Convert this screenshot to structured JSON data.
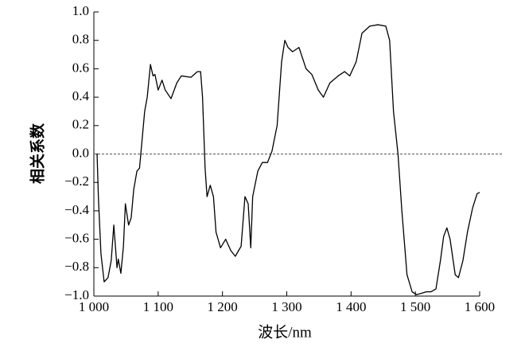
{
  "chart_data": {
    "type": "line",
    "xlabel": "波长/nm",
    "ylabel": "相关系数",
    "x": [
      1005,
      1007,
      1011,
      1016,
      1022,
      1027,
      1031,
      1033,
      1036,
      1038,
      1042,
      1046,
      1049,
      1054,
      1058,
      1062,
      1067,
      1071,
      1074,
      1079,
      1083,
      1088,
      1092,
      1095,
      1100,
      1106,
      1111,
      1120,
      1129,
      1136,
      1151,
      1161,
      1166,
      1169,
      1173,
      1176,
      1181,
      1186,
      1190,
      1197,
      1205,
      1213,
      1220,
      1225,
      1229,
      1235,
      1240,
      1244,
      1247,
      1255,
      1262,
      1270,
      1277,
      1285,
      1292,
      1297,
      1302,
      1309,
      1319,
      1330,
      1339,
      1349,
      1357,
      1367,
      1380,
      1390,
      1398,
      1408,
      1417,
      1429,
      1442,
      1454,
      1460,
      1466,
      1473,
      1479,
      1487,
      1495,
      1502,
      1510,
      1517,
      1524,
      1532,
      1539,
      1544,
      1549,
      1554,
      1562,
      1567,
      1574,
      1581,
      1589,
      1596,
      1600
    ],
    "series": [
      {
        "color": "#000000",
        "values": [
          0.0,
          -0.3,
          -0.7,
          -0.9,
          -0.87,
          -0.75,
          -0.5,
          -0.62,
          -0.8,
          -0.74,
          -0.84,
          -0.65,
          -0.35,
          -0.5,
          -0.45,
          -0.25,
          -0.12,
          -0.1,
          0.05,
          0.3,
          0.4,
          0.63,
          0.55,
          0.56,
          0.45,
          0.52,
          0.45,
          0.39,
          0.5,
          0.55,
          0.54,
          0.58,
          0.58,
          0.4,
          -0.1,
          -0.3,
          -0.22,
          -0.3,
          -0.55,
          -0.66,
          -0.6,
          -0.68,
          -0.72,
          -0.68,
          -0.65,
          -0.3,
          -0.35,
          -0.66,
          -0.3,
          -0.12,
          -0.06,
          -0.06,
          0.02,
          0.2,
          0.65,
          0.8,
          0.75,
          0.72,
          0.75,
          0.6,
          0.56,
          0.45,
          0.4,
          0.5,
          0.55,
          0.58,
          0.55,
          0.65,
          0.85,
          0.9,
          0.91,
          0.9,
          0.8,
          0.3,
          0.0,
          -0.4,
          -0.85,
          -0.97,
          -0.99,
          -0.98,
          -0.97,
          -0.97,
          -0.95,
          -0.75,
          -0.58,
          -0.52,
          -0.6,
          -0.85,
          -0.87,
          -0.75,
          -0.55,
          -0.38,
          -0.28,
          -0.27
        ]
      }
    ],
    "xlim": [
      1000,
      1600
    ],
    "xticks": [
      {
        "value": 1000,
        "label": "1 000"
      },
      {
        "value": 1100,
        "label": "1 100"
      },
      {
        "value": 1200,
        "label": "1 200"
      },
      {
        "value": 1300,
        "label": "1 300"
      },
      {
        "value": 1400,
        "label": "1 400"
      },
      {
        "value": 1500,
        "label": "1 500"
      },
      {
        "value": 1600,
        "label": "1 600"
      }
    ],
    "ylim": [
      -1,
      1
    ],
    "yticks": [
      {
        "value": 1,
        "label": "1.0"
      },
      0.8,
      0.6,
      0.4,
      0.2,
      {
        "value": 0,
        "label": "0.0"
      },
      {
        "value": -0.2,
        "label": "−0.2"
      },
      {
        "value": -0.4,
        "label": "−0.4"
      },
      {
        "value": -0.6,
        "label": "−0.6"
      },
      {
        "value": -0.8,
        "label": "−0.8"
      },
      {
        "value": -1,
        "label": "−1.0"
      }
    ],
    "reference_line": {
      "y": 0,
      "style": "dashed"
    }
  }
}
